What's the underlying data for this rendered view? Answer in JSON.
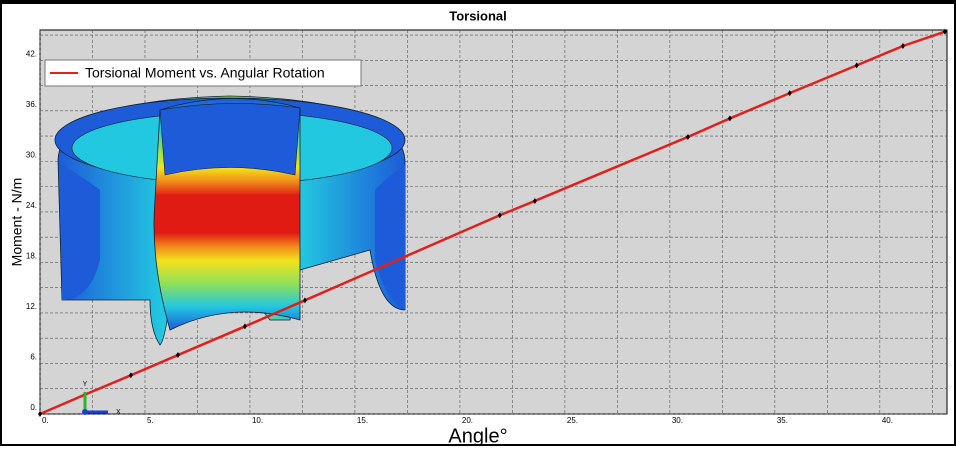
{
  "chart_data": {
    "type": "line",
    "title": "Torsional",
    "xlabel": "Angle°",
    "ylabel": "Moment - N/m",
    "series": [
      {
        "name": "Torsional Moment vs. Angular Rotation",
        "color": "#e0201c",
        "x": [
          0,
          2.14,
          4.33,
          6.57,
          9.76,
          12.62,
          21.9,
          23.57,
          30.86,
          32.86,
          35.71,
          38.9,
          41.1,
          43.1
        ],
        "values": [
          0,
          2.3,
          4.6,
          7.0,
          10.4,
          13.5,
          23.6,
          25.3,
          32.9,
          35.1,
          38.1,
          41.4,
          43.7,
          45.4
        ]
      }
    ],
    "xlim": [
      0,
      43.2
    ],
    "ylim": [
      0,
      45.6
    ],
    "xticks": [
      {
        "value": 0,
        "label": "0."
      },
      {
        "value": 5,
        "label": "5."
      },
      {
        "value": 10,
        "label": "10."
      },
      {
        "value": 15,
        "label": "15."
      },
      {
        "value": 20,
        "label": "20."
      },
      {
        "value": 25,
        "label": "25."
      },
      {
        "value": 30,
        "label": "30."
      },
      {
        "value": 35,
        "label": "35."
      },
      {
        "value": 40,
        "label": "40."
      }
    ],
    "yticks": [
      {
        "value": 0,
        "label": "0."
      },
      {
        "value": 6,
        "label": "6."
      },
      {
        "value": 12,
        "label": "12."
      },
      {
        "value": 18,
        "label": "18."
      },
      {
        "value": 24,
        "label": "24."
      },
      {
        "value": 30,
        "label": "30."
      },
      {
        "value": 36,
        "label": "36."
      },
      {
        "value": 42,
        "label": "42."
      }
    ],
    "xminorticks": [
      2.5,
      7.5,
      12.5,
      17.5,
      22.5,
      27.5,
      32.5,
      37.5,
      42.5
    ],
    "yminorticks": [
      3,
      9,
      15,
      21,
      27,
      33,
      39,
      45
    ],
    "grid": true,
    "legend": "upper left",
    "triad_labels": [
      "Y",
      "X"
    ]
  }
}
